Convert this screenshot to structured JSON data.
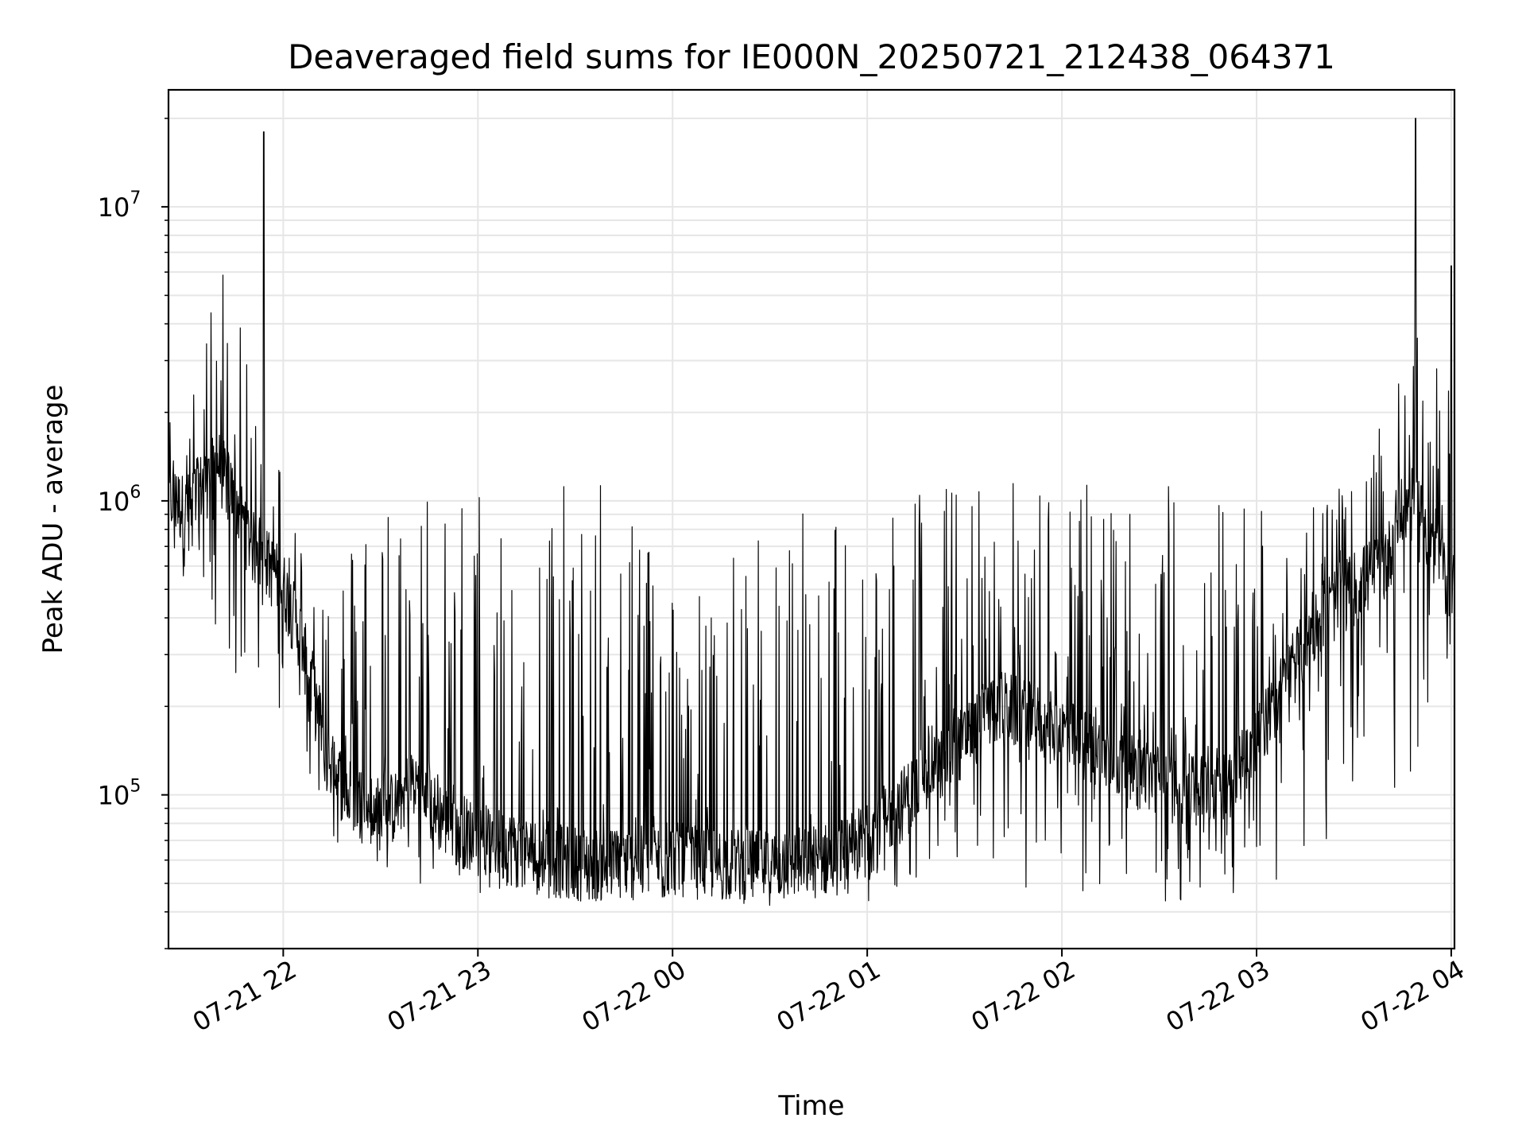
{
  "chart_data": {
    "type": "line",
    "title": "Deaveraged field sums for IE000N_20250721_212438_064371",
    "xlabel": "Time",
    "ylabel": "Peak ADU - average",
    "y_scale": "log",
    "ylim": [
      30000,
      25000000
    ],
    "xlim": [
      "2025-07-21T21:24:38",
      "2025-07-22T04:01:00"
    ],
    "x_ticks": [
      {
        "t": "2025-07-21T22:00",
        "label": "07-21 22"
      },
      {
        "t": "2025-07-21T23:00",
        "label": "07-21 23"
      },
      {
        "t": "2025-07-22T00:00",
        "label": "07-22 00"
      },
      {
        "t": "2025-07-22T01:00",
        "label": "07-22 01"
      },
      {
        "t": "2025-07-22T02:00",
        "label": "07-22 02"
      },
      {
        "t": "2025-07-22T03:00",
        "label": "07-22 03"
      },
      {
        "t": "2025-07-22T04:00",
        "label": "07-22 04"
      }
    ],
    "y_ticks": [
      {
        "value": 100000,
        "base": "10",
        "exp": "5"
      },
      {
        "value": 1000000,
        "base": "10",
        "exp": "6"
      },
      {
        "value": 10000000,
        "base": "10",
        "exp": "7"
      }
    ],
    "grid": true,
    "line_color": "#000000",
    "series": [
      {
        "x": [
          "2025-07-21T21:25",
          "2025-07-21T21:30",
          "2025-07-21T21:35",
          "2025-07-21T21:40",
          "2025-07-21T21:45",
          "2025-07-21T21:50",
          "2025-07-21T21:55",
          "2025-07-21T22:00",
          "2025-07-21T22:05",
          "2025-07-21T22:10",
          "2025-07-21T22:15",
          "2025-07-21T22:20",
          "2025-07-21T22:25",
          "2025-07-21T22:30",
          "2025-07-21T22:35",
          "2025-07-21T22:40",
          "2025-07-21T22:45",
          "2025-07-21T22:50",
          "2025-07-21T22:55",
          "2025-07-21T23:00",
          "2025-07-21T23:10",
          "2025-07-21T23:20",
          "2025-07-21T23:30",
          "2025-07-21T23:40",
          "2025-07-21T23:50",
          "2025-07-22T00:00",
          "2025-07-22T00:10",
          "2025-07-22T00:20",
          "2025-07-22T00:30",
          "2025-07-22T00:40",
          "2025-07-22T00:50",
          "2025-07-22T01:00",
          "2025-07-22T01:10",
          "2025-07-22T01:20",
          "2025-07-22T01:30",
          "2025-07-22T01:40",
          "2025-07-22T01:50",
          "2025-07-22T02:00",
          "2025-07-22T02:10",
          "2025-07-22T02:20",
          "2025-07-22T02:30",
          "2025-07-22T02:40",
          "2025-07-22T02:50",
          "2025-07-22T03:00",
          "2025-07-22T03:10",
          "2025-07-22T03:20",
          "2025-07-22T03:30",
          "2025-07-22T03:40",
          "2025-07-22T03:45",
          "2025-07-22T03:50",
          "2025-07-22T03:55",
          "2025-07-22T04:00"
        ],
        "median": [
          1000000,
          900000,
          1100000,
          1300000,
          1000000,
          700000,
          600000,
          500000,
          350000,
          200000,
          120000,
          100000,
          90000,
          85000,
          90000,
          110000,
          90000,
          80000,
          75000,
          70000,
          65000,
          60000,
          58000,
          57000,
          58000,
          60000,
          58000,
          57000,
          56000,
          58000,
          60000,
          70000,
          90000,
          120000,
          150000,
          200000,
          180000,
          160000,
          140000,
          120000,
          110000,
          100000,
          110000,
          150000,
          250000,
          400000,
          500000,
          600000,
          900000,
          1000000,
          600000,
          500000
        ],
        "high": [
          2000000,
          2000000,
          3000000,
          8000000,
          5000000,
          2500000,
          1500000,
          1500000,
          800000,
          600000,
          800000,
          700000,
          1200000,
          1200000,
          1200000,
          1200000,
          1200000,
          1200000,
          1200000,
          1200000,
          1200000,
          1200000,
          1100000,
          1200000,
          1200000,
          600000,
          500000,
          700000,
          800000,
          1200000,
          1000000,
          1100000,
          1200000,
          1200000,
          1200000,
          1200000,
          1200000,
          1200000,
          1200000,
          1200000,
          1200000,
          1200000,
          1200000,
          1100000,
          1100000,
          1100000,
          1100000,
          2000000,
          5000000,
          4500000,
          3000000,
          2500000
        ],
        "low": [
          600000,
          500000,
          400000,
          300000,
          250000,
          200000,
          200000,
          180000,
          120000,
          80000,
          70000,
          65000,
          60000,
          55000,
          55000,
          50000,
          50000,
          48000,
          47000,
          46000,
          45000,
          44000,
          43000,
          42000,
          43000,
          44000,
          45000,
          45000,
          44000,
          44000,
          43000,
          42000,
          45000,
          50000,
          52000,
          50000,
          48000,
          45000,
          43000,
          42000,
          42000,
          43000,
          45000,
          48000,
          50000,
          55000,
          100000,
          120000,
          80000,
          150000,
          120000,
          300000
        ]
      }
    ],
    "spikes": [
      {
        "t": "2025-07-21T21:54",
        "value": 18000000
      },
      {
        "t": "2025-07-22T03:49",
        "value": 20000000
      },
      {
        "t": "2025-07-22T04:00",
        "value": 6300000
      }
    ]
  }
}
